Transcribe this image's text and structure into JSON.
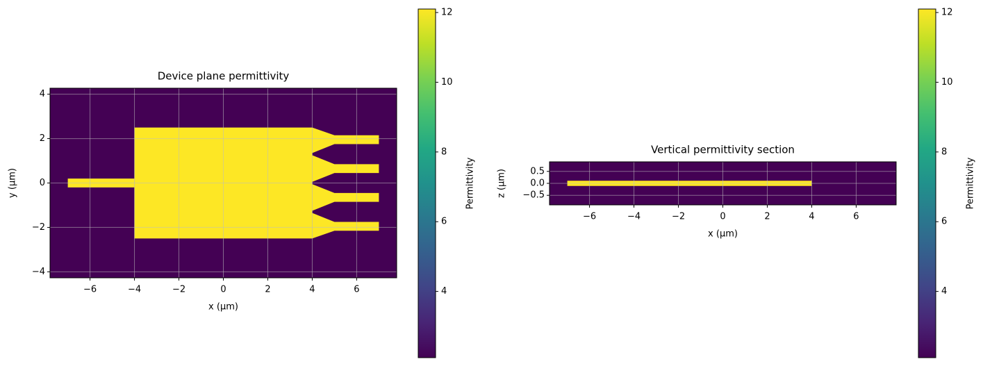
{
  "chart_data": [
    {
      "type": "heatmap",
      "title": "Device plane permittivity",
      "xlabel": "x (µm)",
      "ylabel": "y (µm)",
      "xlim": [
        -7.8,
        7.8
      ],
      "ylim": [
        -4.27,
        4.27
      ],
      "xticks": [
        {
          "value": -6,
          "label": "−6"
        },
        {
          "value": -4,
          "label": "−4"
        },
        {
          "value": -2,
          "label": "−2"
        },
        0,
        2,
        4,
        6
      ],
      "yticks": [
        {
          "value": -4,
          "label": "−4"
        },
        {
          "value": -2,
          "label": "−2"
        },
        0,
        2,
        4
      ],
      "grid": true,
      "cmap": "viridis",
      "background": 2.1,
      "structure_value": 12.1,
      "polygons": [
        {
          "x": [
            -7,
            -4,
            -4,
            -7
          ],
          "y": [
            -0.2,
            -0.2,
            0.2,
            0.2
          ]
        },
        {
          "x": [
            -4,
            4,
            4,
            -4
          ],
          "y": [
            -2.5,
            -2.5,
            2.5,
            2.5
          ]
        },
        {
          "x": [
            4,
            5,
            7,
            7,
            5,
            4
          ],
          "y": [
            1.35,
            1.75,
            1.75,
            2.15,
            2.15,
            2.5
          ]
        },
        {
          "x": [
            4,
            5,
            7,
            7,
            5,
            4
          ],
          "y": [
            0.05,
            0.45,
            0.45,
            0.85,
            0.85,
            1.25
          ]
        },
        {
          "x": [
            4,
            5,
            7,
            7,
            5,
            4
          ],
          "y": [
            -1.25,
            -0.85,
            -0.85,
            -0.45,
            -0.45,
            -0.05
          ]
        },
        {
          "x": [
            4,
            5,
            7,
            7,
            5,
            4
          ],
          "y": [
            -2.5,
            -2.15,
            -2.15,
            -1.75,
            -1.75,
            -1.35
          ]
        }
      ],
      "clim": [
        2.1,
        12.1
      ],
      "cticks": [
        4,
        6,
        8,
        10,
        12
      ],
      "clabel": "Permittivity"
    },
    {
      "type": "heatmap",
      "title": "Vertical permittivity section",
      "xlabel": "x (µm)",
      "ylabel": "z (µm)",
      "xlim": [
        -7.8,
        7.8
      ],
      "ylim": [
        -0.9,
        0.9
      ],
      "xticks": [
        {
          "value": -6,
          "label": "−6"
        },
        {
          "value": -4,
          "label": "−4"
        },
        {
          "value": -2,
          "label": "−2"
        },
        0,
        2,
        4,
        6
      ],
      "yticks": [
        {
          "value": -0.5,
          "label": "−0.5"
        },
        {
          "value": 0,
          "label": "0.0"
        },
        0.5
      ],
      "grid": true,
      "cmap": "viridis",
      "background": 2.1,
      "structure_value": 12.1,
      "polygons": [
        {
          "x": [
            -7,
            4,
            4,
            -7
          ],
          "y": [
            -0.11,
            -0.11,
            0.11,
            0.11
          ]
        }
      ],
      "clim": [
        2.1,
        12.1
      ],
      "cticks": [
        4,
        6,
        8,
        10,
        12
      ],
      "clabel": "Permittivity"
    }
  ]
}
